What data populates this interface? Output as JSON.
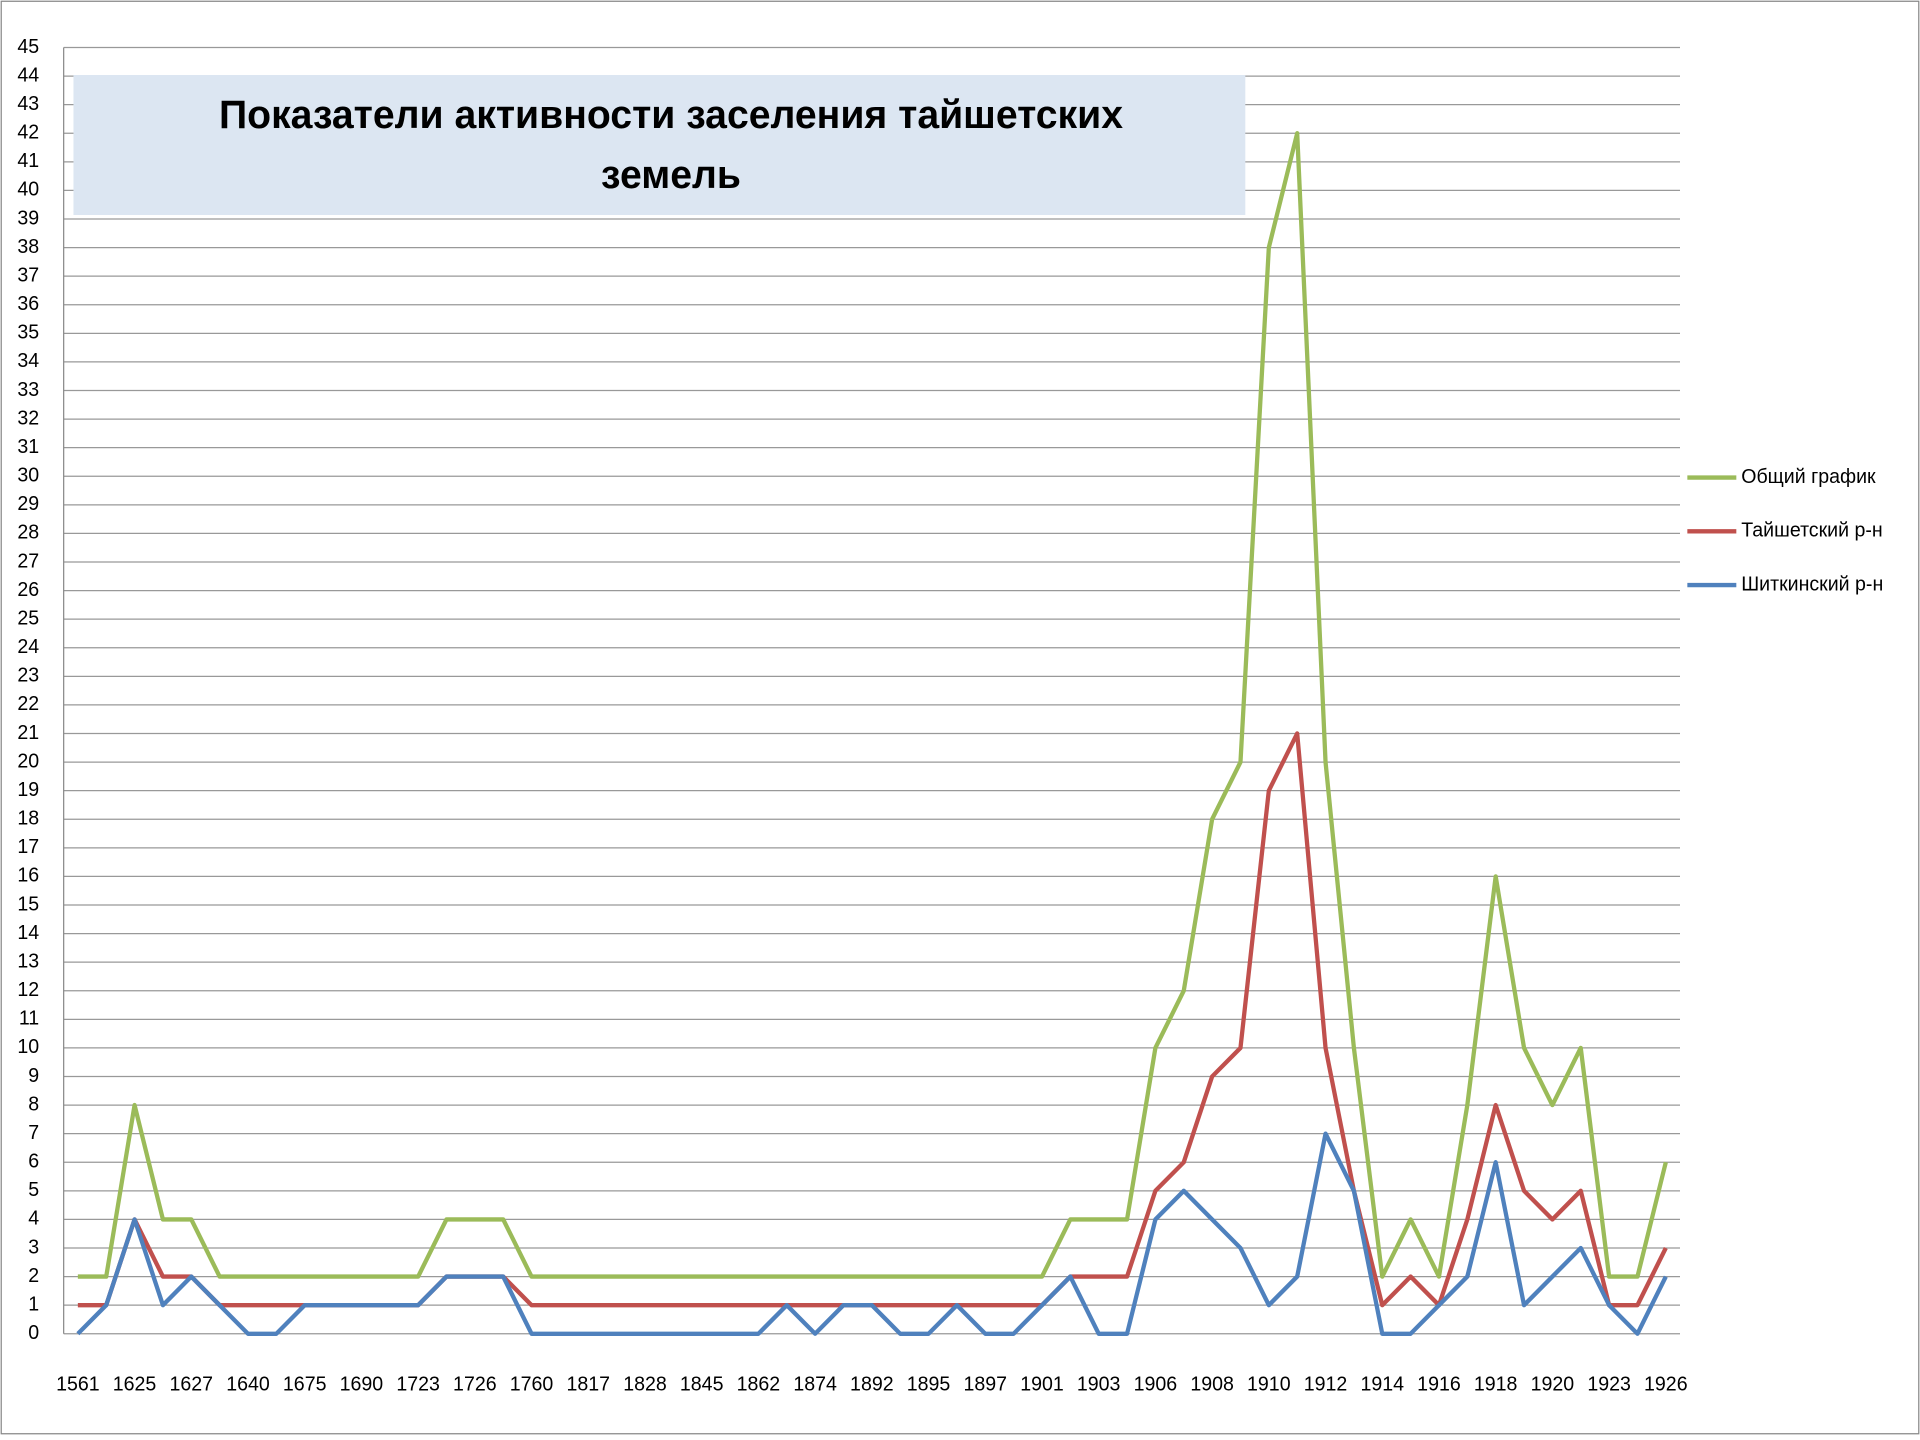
{
  "chart_data": {
    "type": "line",
    "title": [
      "Показатели активности заселения тайшетских",
      "земель"
    ],
    "categories": [
      "1561",
      null,
      "1625",
      null,
      "1627",
      null,
      "1640",
      null,
      "1675",
      null,
      "1690",
      null,
      "1723",
      null,
      "1726",
      null,
      "1760",
      null,
      "1817",
      null,
      "1828",
      null,
      "1845",
      null,
      "1862",
      null,
      "1874",
      null,
      "1892",
      null,
      "1895",
      null,
      "1897",
      null,
      "1901",
      null,
      "1903",
      null,
      "1906",
      null,
      "1908",
      null,
      "1910",
      null,
      "1912",
      null,
      "1914",
      null,
      "1916",
      null,
      "1918",
      null,
      "1920",
      null,
      "1923",
      null,
      "1926"
    ],
    "series": [
      {
        "name": "Общий график",
        "color": "#9bbb59",
        "values": [
          2,
          2,
          8,
          4,
          4,
          2,
          2,
          2,
          2,
          2,
          2,
          2,
          2,
          4,
          4,
          4,
          2,
          2,
          2,
          2,
          2,
          2,
          2,
          2,
          2,
          2,
          2,
          2,
          2,
          2,
          2,
          2,
          2,
          2,
          2,
          4,
          4,
          4,
          10,
          12,
          18,
          20,
          38,
          42,
          20,
          10,
          2,
          4,
          2,
          8,
          16,
          10,
          8,
          10,
          2,
          2,
          6
        ]
      },
      {
        "name": "Тайшетский р-н",
        "color": "#c0504d",
        "values": [
          1,
          1,
          4,
          2,
          2,
          1,
          1,
          1,
          1,
          1,
          1,
          1,
          1,
          2,
          2,
          2,
          1,
          1,
          1,
          1,
          1,
          1,
          1,
          1,
          1,
          1,
          1,
          1,
          1,
          1,
          1,
          1,
          1,
          1,
          1,
          2,
          2,
          2,
          5,
          6,
          9,
          10,
          19,
          21,
          10,
          5,
          1,
          2,
          1,
          4,
          8,
          5,
          4,
          5,
          1,
          1,
          3
        ]
      },
      {
        "name": "Шиткинский р-н",
        "color": "#4f81bd",
        "values": [
          0,
          1,
          4,
          1,
          2,
          1,
          0,
          0,
          1,
          1,
          1,
          1,
          1,
          2,
          2,
          2,
          0,
          0,
          0,
          0,
          0,
          0,
          0,
          0,
          0,
          1,
          0,
          1,
          1,
          0,
          0,
          1,
          0,
          0,
          1,
          2,
          0,
          0,
          4,
          5,
          4,
          3,
          1,
          2,
          7,
          5,
          0,
          0,
          1,
          2,
          6,
          1,
          2,
          3,
          1,
          0,
          2
        ]
      }
    ],
    "ylim": [
      0,
      45
    ],
    "yticks": [
      0,
      1,
      2,
      3,
      4,
      5,
      6,
      7,
      8,
      9,
      10,
      11,
      12,
      13,
      14,
      15,
      16,
      17,
      18,
      19,
      20,
      21,
      22,
      23,
      24,
      25,
      26,
      27,
      28,
      29,
      30,
      31,
      32,
      33,
      34,
      35,
      36,
      37,
      38,
      39,
      40,
      41,
      42,
      43,
      44,
      45
    ],
    "grid": true,
    "legend": "right"
  }
}
